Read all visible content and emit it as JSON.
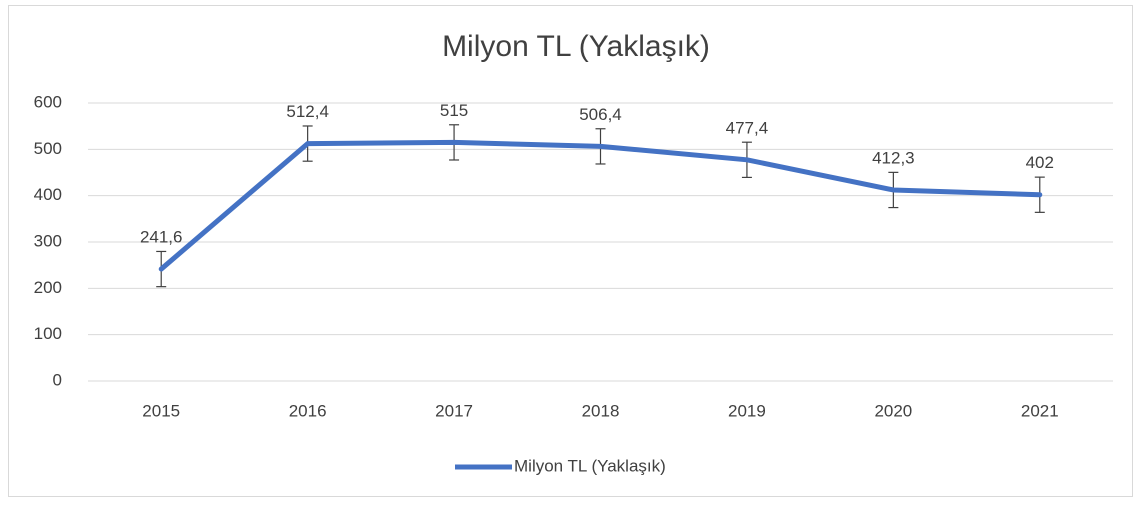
{
  "chart_data": {
    "type": "line",
    "title": "Milyon TL (Yaklaşık)",
    "categories": [
      "2015",
      "2016",
      "2017",
      "2018",
      "2019",
      "2020",
      "2021"
    ],
    "series": [
      {
        "name": "Milyon TL (Yaklaşık)",
        "color": "#4472c4",
        "values": [
          241.6,
          512.4,
          515,
          506.4,
          477.4,
          412.3,
          402
        ],
        "value_labels": [
          "241,6",
          "512,4",
          "515",
          "506,4",
          "477,4",
          "412,3",
          "402"
        ],
        "errors": [
          38,
          38,
          38,
          38,
          38,
          38,
          38
        ]
      }
    ],
    "ylim": [
      0,
      600
    ],
    "yticks": [
      0,
      100,
      200,
      300,
      400,
      500,
      600
    ],
    "grid": true,
    "legend": "bottom"
  }
}
